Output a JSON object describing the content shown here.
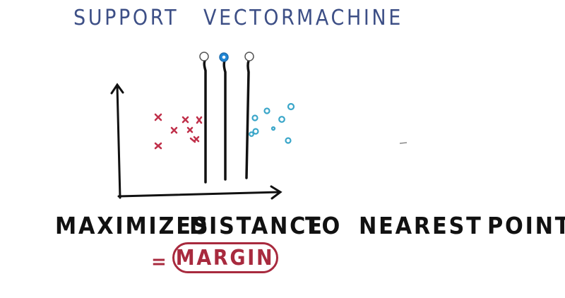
{
  "header": {
    "title_words": [
      "SUPPORT",
      "VECTOR",
      "MACHINE"
    ]
  },
  "diagram": {
    "x_marks": 8,
    "o_marks": 8,
    "lines": 3,
    "selected_line": "middle",
    "colors": {
      "title": "#3d4f86",
      "x_class": "#c0304a",
      "o_class": "#3aa6c9",
      "selected_knob": "#1f86d6",
      "margin": "#a82a3e"
    }
  },
  "caption": {
    "words": [
      "MAXIMIZES",
      "DISTANCE",
      "TO",
      "NEAREST",
      "POINT"
    ]
  },
  "result": {
    "equals": "=",
    "label": "MARGIN"
  }
}
